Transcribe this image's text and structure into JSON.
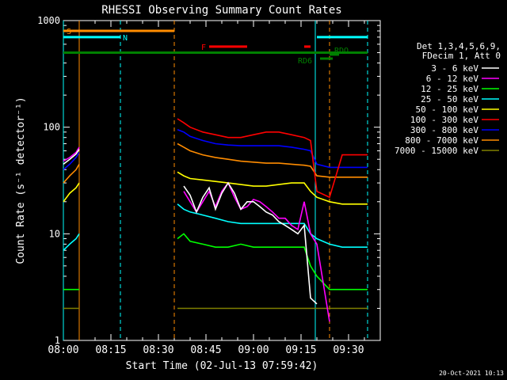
{
  "chart_data": {
    "type": "line",
    "title": "RHESSI Observing Summary Count Rates",
    "xlabel": "Start Time (02-Jul-13 07:59:42)",
    "ylabel": "Count Rate (s⁻¹ detector⁻¹)",
    "yscale": "log",
    "ylim": [
      1,
      1000
    ],
    "xlim_minutes": [
      0,
      100
    ],
    "x_tick_labels": [
      "08:00",
      "08:15",
      "08:30",
      "08:45",
      "09:00",
      "09:15",
      "09:30"
    ],
    "x_tick_minutes": [
      0,
      15,
      30,
      45,
      60,
      75,
      90
    ],
    "y_tick_labels": [
      "1",
      "10",
      "100",
      "1000"
    ],
    "y_tick_values": [
      1,
      10,
      100,
      1000
    ],
    "legend_header": [
      "Det 1,3,4,5,6,9,",
      "FDecim 1, Att 0"
    ],
    "legend_position": "right",
    "footer_date": "20-Oct-2021 10:13",
    "colors": {
      "background": "#000000",
      "axes": "#ffffff",
      "s_flag": "#ff8c00",
      "n_flag": "#00ffff",
      "f_flag": "#ff0000",
      "rd_flag": "#008000"
    },
    "series": [
      {
        "name": "3 - 6 keV",
        "color": "#ffffff",
        "segments": [
          {
            "x": [
              0,
              2,
              4,
              5
            ],
            "y": [
              45,
              50,
              56,
              62
            ]
          },
          {
            "x": [
              38,
              40,
              42,
              44,
              46,
              48,
              50,
              52,
              54,
              56,
              58,
              60,
              62,
              64,
              66,
              68,
              70,
              72,
              74,
              76,
              78,
              80
            ],
            "y": [
              28,
              23,
              16,
              22,
              27,
              17,
              24,
              30,
              24,
              17,
              20,
              20,
              18,
              16,
              15,
              13,
              12,
              11,
              10,
              12,
              2.5,
              2.2
            ]
          }
        ]
      },
      {
        "name": "6 - 12 keV",
        "color": "#ff00ff",
        "segments": [
          {
            "x": [
              0,
              2,
              4,
              5
            ],
            "y": [
              48,
              52,
              58,
              65
            ]
          },
          {
            "x": [
              38,
              40,
              42,
              44,
              46,
              48,
              50,
              52,
              54,
              56,
              58,
              60,
              62,
              64,
              66,
              68,
              70,
              72,
              74,
              76,
              78,
              80,
              84
            ],
            "y": [
              25,
              20,
              16,
              20,
              25,
              18,
              25,
              30,
              22,
              17,
              18,
              21,
              20,
              18,
              16,
              14,
              14,
              12,
              11,
              20,
              10,
              8,
              1.5
            ]
          }
        ]
      },
      {
        "name": "12 - 25 keV",
        "color": "#00ff00",
        "segments": [
          {
            "x": [
              0,
              2,
              4,
              5
            ],
            "y": [
              3,
              3,
              3,
              3
            ]
          },
          {
            "x": [
              36,
              38,
              40,
              44,
              48,
              52,
              56,
              60,
              64,
              68,
              72,
              76,
              78,
              80,
              84,
              88,
              92,
              96
            ],
            "y": [
              9,
              10,
              8.5,
              8,
              7.5,
              7.5,
              8,
              7.5,
              7.5,
              7.5,
              7.5,
              7.5,
              5,
              4,
              3,
              3,
              3,
              3
            ]
          }
        ]
      },
      {
        "name": "25 - 50 keV",
        "color": "#00ffff",
        "segments": [
          {
            "x": [
              0,
              2,
              4,
              5
            ],
            "y": [
              7,
              8,
              9,
              10
            ]
          },
          {
            "x": [
              36,
              38,
              40,
              44,
              48,
              52,
              56,
              60,
              64,
              68,
              72,
              76,
              78,
              80,
              84,
              88,
              92,
              96
            ],
            "y": [
              19,
              17,
              16,
              15,
              14,
              13,
              12.5,
              12.5,
              12.5,
              12.5,
              12.5,
              12.5,
              10,
              9,
              8,
              7.5,
              7.5,
              7.5
            ]
          }
        ]
      },
      {
        "name": "50 - 100 keV",
        "color": "#ffff00",
        "segments": [
          {
            "x": [
              0,
              2,
              4,
              5
            ],
            "y": [
              20,
              24,
              27,
              30
            ]
          },
          {
            "x": [
              36,
              38,
              40,
              44,
              48,
              52,
              56,
              60,
              64,
              68,
              72,
              76,
              78,
              80,
              84,
              88,
              92,
              96
            ],
            "y": [
              38,
              35,
              33,
              32,
              31,
              30,
              29,
              28,
              28,
              29,
              30,
              30,
              25,
              22,
              20,
              19,
              19,
              19
            ]
          }
        ]
      },
      {
        "name": "100 - 300 keV",
        "color": "#ff0000",
        "segments": [
          {
            "x": [
              36,
              38,
              40,
              44,
              48,
              52,
              56,
              60,
              64,
              68,
              72,
              76,
              78,
              80,
              84,
              88,
              92,
              96
            ],
            "y": [
              120,
              110,
              100,
              90,
              85,
              80,
              80,
              85,
              90,
              90,
              85,
              80,
              75,
              25,
              22,
              55,
              55,
              55
            ]
          }
        ]
      },
      {
        "name": "300 - 800 keV",
        "color": "#0000ff",
        "segments": [
          {
            "x": [
              0,
              2,
              4,
              5
            ],
            "y": [
              40,
              45,
              52,
              58
            ]
          },
          {
            "x": [
              36,
              38,
              40,
              44,
              48,
              52,
              56,
              60,
              64,
              68,
              72,
              76,
              78,
              80,
              84,
              88,
              92,
              96
            ],
            "y": [
              95,
              90,
              82,
              75,
              70,
              68,
              67,
              67,
              67,
              67,
              65,
              62,
              60,
              45,
              42,
              42,
              42,
              42
            ]
          }
        ]
      },
      {
        "name": "800 - 7000 keV",
        "color": "#ff8c00",
        "segments": [
          {
            "x": [
              0,
              2,
              4,
              5
            ],
            "y": [
              30,
              35,
              40,
              45
            ]
          },
          {
            "x": [
              36,
              38,
              40,
              44,
              48,
              52,
              56,
              60,
              64,
              68,
              72,
              76,
              78,
              80,
              84,
              88,
              92,
              96
            ],
            "y": [
              70,
              65,
              60,
              55,
              52,
              50,
              48,
              47,
              46,
              46,
              45,
              44,
              43,
              35,
              34,
              34,
              34,
              34
            ]
          }
        ]
      },
      {
        "name": "7000 - 15000 keV",
        "color": "#808000",
        "segments": [
          {
            "x": [
              0,
              2,
              4,
              5
            ],
            "y": [
              2,
              2,
              2,
              2
            ]
          },
          {
            "x": [
              36,
              40,
              44,
              48,
              52,
              56,
              60,
              64,
              68,
              72,
              76,
              78,
              80,
              84,
              88,
              92,
              96
            ],
            "y": [
              2,
              2,
              2,
              2,
              2,
              2,
              2,
              2,
              2,
              2,
              2,
              2,
              2,
              2,
              2,
              2,
              2
            ]
          }
        ]
      }
    ],
    "annotations": [
      {
        "label": "S",
        "x": [
          0,
          35
        ],
        "y": 800,
        "color": "#ff8c00"
      },
      {
        "label": "N",
        "x": [
          0,
          18
        ],
        "y": 700,
        "color": "#00ffff"
      },
      {
        "label": "",
        "x": [
          80,
          96
        ],
        "y": 700,
        "color": "#00ffff"
      },
      {
        "label": "F",
        "x": [
          46,
          58
        ],
        "y": 570,
        "color": "#ff0000"
      },
      {
        "label": "",
        "x": [
          76,
          78
        ],
        "y": 570,
        "color": "#ff0000"
      },
      {
        "label": "",
        "x": [
          0,
          96
        ],
        "y": 500,
        "color": "#008000"
      },
      {
        "label": "RD6",
        "x": [
          81,
          85
        ],
        "y": 440,
        "color": "#008000"
      },
      {
        "label": "RDO",
        "x": [
          84,
          87
        ],
        "y": 480,
        "color": "#008000"
      }
    ],
    "vlines_solid": [
      {
        "x": 0,
        "color": "#00ffff"
      },
      {
        "x": 5,
        "color": "#ff8c00"
      },
      {
        "x": 79.5,
        "color": "#00ffff"
      }
    ],
    "vlines_dashed": [
      {
        "x": 18,
        "color": "#00ffff"
      },
      {
        "x": 35,
        "color": "#ff8c00"
      },
      {
        "x": 84,
        "color": "#ff8c00"
      },
      {
        "x": 96,
        "color": "#00ffff"
      }
    ]
  }
}
